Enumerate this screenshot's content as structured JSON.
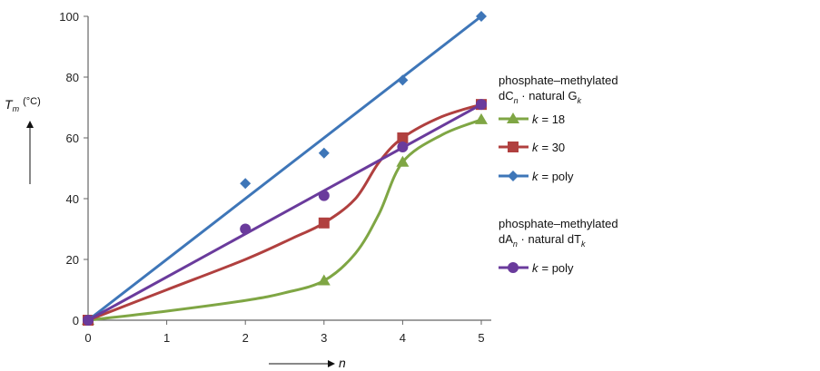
{
  "chart_data": {
    "type": "line",
    "title": "",
    "xlabel": "n",
    "ylabel_main": "T",
    "ylabel_sub": "m",
    "ylabel_unit": "(°C)",
    "xlim": [
      0,
      5
    ],
    "ylim": [
      0,
      100
    ],
    "xticks": [
      "0",
      "1",
      "2",
      "3",
      "4",
      "5"
    ],
    "yticks": [
      "0",
      "20",
      "40",
      "60",
      "80",
      "100"
    ],
    "grid": false,
    "series": [
      {
        "id": "gk18",
        "group": "G",
        "k_label": "k",
        "k_value": "= 18",
        "marker": "triangle",
        "color": "#7fa644",
        "points": [
          {
            "x": 0,
            "y": 0
          },
          {
            "x": 3,
            "y": 13
          },
          {
            "x": 4,
            "y": 52
          },
          {
            "x": 5,
            "y": 66
          }
        ],
        "curve": [
          [
            0,
            0
          ],
          [
            1,
            3
          ],
          [
            2,
            6.5
          ],
          [
            2.5,
            9
          ],
          [
            3,
            13
          ],
          [
            3.4,
            22
          ],
          [
            3.7,
            35
          ],
          [
            4,
            52
          ],
          [
            4.5,
            61
          ],
          [
            5,
            66
          ]
        ]
      },
      {
        "id": "gk30",
        "group": "G",
        "k_label": "k",
        "k_value": "= 30",
        "marker": "square",
        "color": "#b0403f",
        "points": [
          {
            "x": 0,
            "y": 0
          },
          {
            "x": 3,
            "y": 32
          },
          {
            "x": 4,
            "y": 60
          },
          {
            "x": 5,
            "y": 71
          }
        ],
        "curve": [
          [
            0,
            0
          ],
          [
            1,
            10
          ],
          [
            2,
            20
          ],
          [
            2.6,
            27
          ],
          [
            3,
            32
          ],
          [
            3.4,
            40
          ],
          [
            3.7,
            52
          ],
          [
            4,
            60
          ],
          [
            4.5,
            67
          ],
          [
            5,
            71
          ]
        ]
      },
      {
        "id": "gpoly",
        "group": "G",
        "k_label": "k",
        "k_value": "= poly",
        "marker": "diamond",
        "color": "#3e76b8",
        "points": [
          {
            "x": 0,
            "y": 0
          },
          {
            "x": 2,
            "y": 45
          },
          {
            "x": 3,
            "y": 55
          },
          {
            "x": 4,
            "y": 79
          },
          {
            "x": 5,
            "y": 100
          }
        ],
        "curve": [
          [
            0,
            0
          ],
          [
            5,
            100
          ]
        ]
      },
      {
        "id": "tpoly",
        "group": "T",
        "k_label": "k",
        "k_value": "= poly",
        "marker": "circle",
        "color": "#6a3b9c",
        "points": [
          {
            "x": 0,
            "y": 0
          },
          {
            "x": 2,
            "y": 30
          },
          {
            "x": 3,
            "y": 41
          },
          {
            "x": 4,
            "y": 57
          },
          {
            "x": 5,
            "y": 71
          }
        ],
        "curve": [
          [
            0,
            0
          ],
          [
            5,
            71
          ]
        ]
      }
    ],
    "legend": {
      "group_g": {
        "line1": "phosphate–methylated",
        "line2_pre": "dC",
        "line2_sub_n": "n",
        "line2_mid": " · natural G",
        "line2_sub_k": "k"
      },
      "group_t": {
        "line1": "phosphate–methylated",
        "line2_pre": "dA",
        "line2_sub_n": "n",
        "line2_mid": " · natural dT",
        "line2_sub_k": "k"
      }
    }
  }
}
